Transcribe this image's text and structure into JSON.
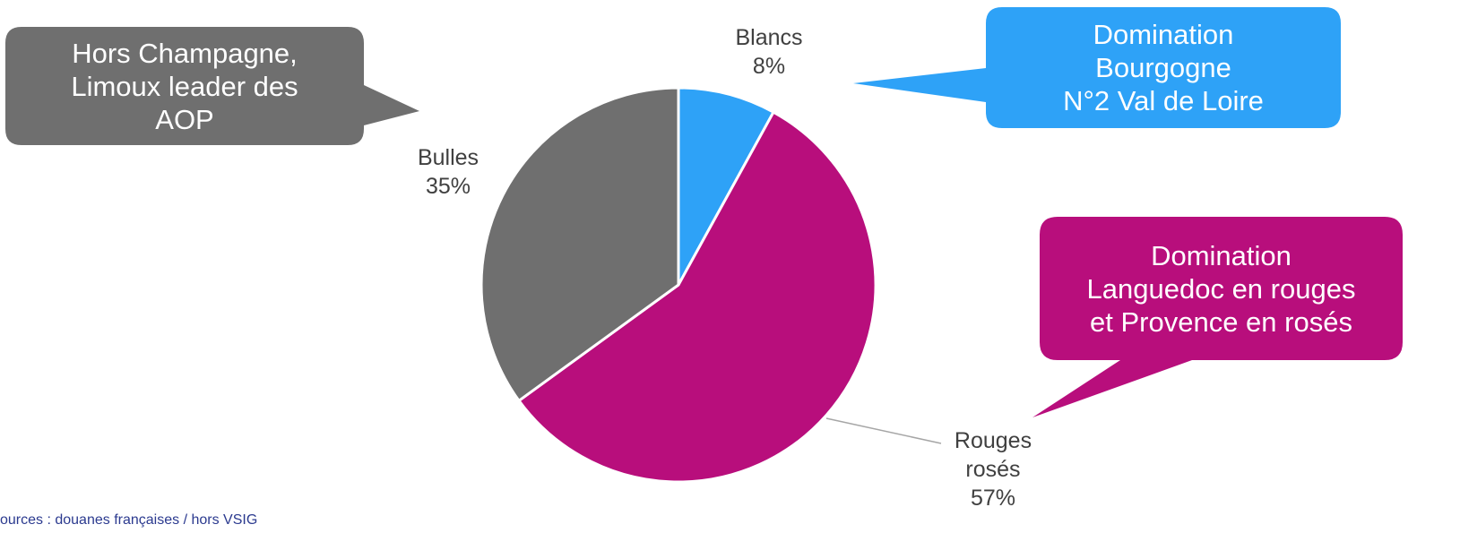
{
  "chart_data": {
    "type": "pie",
    "slices": [
      {
        "name": "Blancs",
        "value": 8,
        "label_lines": [
          "Blancs",
          "8%"
        ],
        "color": "#2ea2f7"
      },
      {
        "name": "Rouges rosés",
        "value": 57,
        "label_lines": [
          "Rouges",
          "rosés",
          "57%"
        ],
        "color": "#b80e7c"
      },
      {
        "name": "Bulles",
        "value": 35,
        "label_lines": [
          "Bulles",
          "35%"
        ],
        "color": "#6f6f6f"
      }
    ],
    "legend": "none"
  },
  "callouts": {
    "bulles": {
      "lines": [
        "Hors Champagne,",
        "Limoux leader des",
        "AOP"
      ],
      "color": "#6f6f6f"
    },
    "blancs": {
      "lines": [
        "Domination",
        "Bourgogne",
        "N°2 Val de Loire"
      ],
      "color": "#2ea2f7"
    },
    "rouges": {
      "lines": [
        "Domination",
        "Languedoc en rouges",
        "et Provence en rosés"
      ],
      "color": "#b80e7c"
    }
  },
  "source_note": "ources : douanes françaises / hors VSIG"
}
